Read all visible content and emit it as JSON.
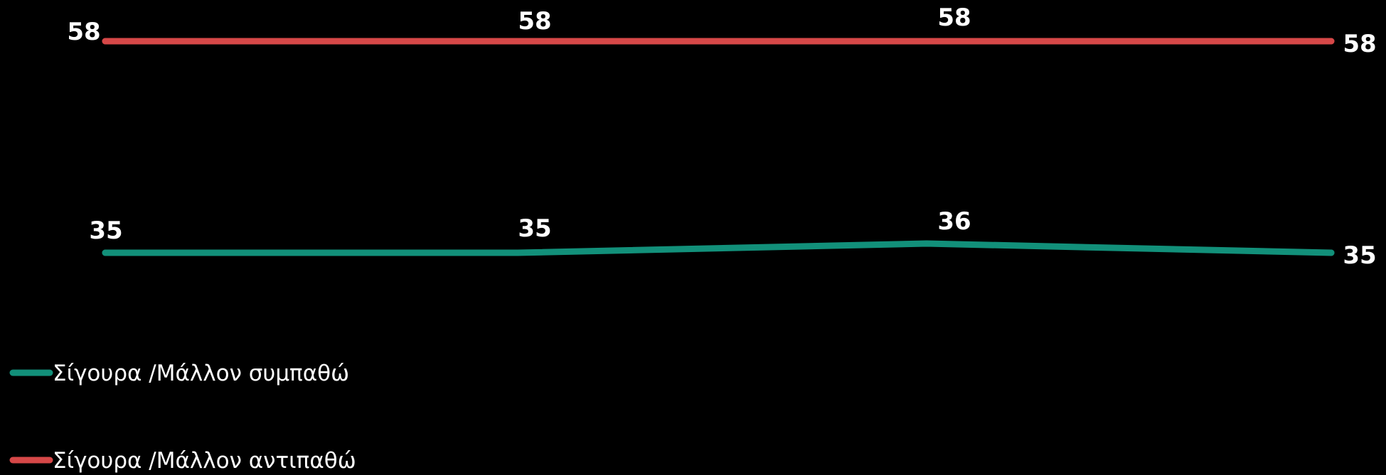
{
  "chart_data": {
    "type": "line",
    "title": "",
    "xlabel": "",
    "ylabel": "",
    "categories": [
      "",
      "",
      "",
      ""
    ],
    "series": [
      {
        "name": "Σίγουρα /Μάλλον αντιπαθώ",
        "color": "#d64848",
        "values": [
          58,
          58,
          58,
          58
        ],
        "labels": [
          "58",
          "58",
          "58",
          "58"
        ]
      },
      {
        "name": "Σίγουρα /Μάλλον συμπαθώ",
        "color": "#12907a",
        "values": [
          35,
          35,
          36,
          35
        ],
        "labels": [
          "35",
          "35",
          "36",
          "35"
        ]
      }
    ],
    "ylim": [
      0,
      70
    ],
    "grid": false,
    "legend": {
      "placement": "bottom-left",
      "order": [
        "Σίγουρα /Μάλλον συμπαθώ",
        "Σίγουρα /Μάλλον αντιπαθώ"
      ]
    }
  }
}
